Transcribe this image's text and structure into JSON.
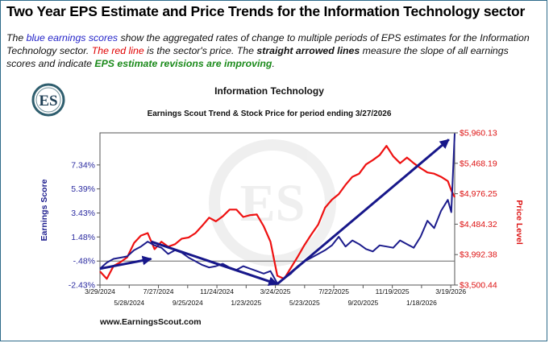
{
  "heading": "Two Year EPS Estimate and Price Trends for the Information Technology sector",
  "description": {
    "p1": "The ",
    "blue_phrase": "blue earnings scores",
    "p2": " show the aggregated rates of change to multiple periods of EPS estimates for the Information Technology sector. ",
    "red_phrase": "The red line",
    "p3": " is the sector's price. The ",
    "bold_phrase": "straight arrowed lines",
    "p4": " measure the slope of all earnings scores and indicate ",
    "green_phrase": "EPS estimate revisions are improving",
    "p5": "."
  },
  "logo_text": "ES",
  "colors": {
    "earnings": "#1c1c8c",
    "price": "#ee1111",
    "arrow": "#17178a",
    "left_axis": "#2a2aa0",
    "right_axis": "#dd1111"
  },
  "chart_data": {
    "type": "line",
    "title": "Information Technology",
    "subtitle": "Earnings Scout Trend & Stock Price for period ending 3/27/2026",
    "ylabel": "Earnings Score",
    "y2label": "Price Level",
    "footer": "www.EarningsScout.com",
    "ylim": [
      -2.43,
      9.95
    ],
    "y_ticks": [
      "-2.43%",
      "-.48%",
      "1.48%",
      "3.43%",
      "5.39%",
      "7.34%"
    ],
    "y_tick_values": [
      -2.43,
      -0.48,
      1.48,
      3.43,
      5.39,
      7.34
    ],
    "y2lim": [
      3500.44,
      5960.13
    ],
    "y2_ticks": [
      "$3,500.44",
      "$3,992.38",
      "$4,484.32",
      "$4,976.25",
      "$5,468.19",
      "$5,960.13"
    ],
    "y2_tick_values": [
      3500.44,
      3992.38,
      4484.32,
      4976.25,
      5468.19,
      5960.13
    ],
    "x_ticks_upper": [
      "3/29/2024",
      "7/27/2024",
      "11/24/2024",
      "3/24/2025",
      "7/22/2025",
      "11/19/2025",
      "3/19/2026"
    ],
    "x_ticks_lower": [
      "5/28/2024",
      "9/25/2024",
      "1/23/2025",
      "5/23/2025",
      "9/20/2025",
      "1/18/2026"
    ],
    "grid": "horizontal line at -.48%",
    "series": [
      {
        "name": "Earnings Score",
        "axis": "left",
        "x": [
          "2024-03-29",
          "2024-04-12",
          "2024-04-26",
          "2024-05-10",
          "2024-05-24",
          "2024-06-07",
          "2024-06-21",
          "2024-07-05",
          "2024-07-19",
          "2024-08-02",
          "2024-08-16",
          "2024-08-30",
          "2024-09-13",
          "2024-09-27",
          "2024-10-11",
          "2024-10-25",
          "2024-11-08",
          "2024-11-22",
          "2024-12-06",
          "2024-12-20",
          "2025-01-03",
          "2025-01-17",
          "2025-01-31",
          "2025-02-14",
          "2025-02-28",
          "2025-03-14",
          "2025-03-28",
          "2025-04-11",
          "2025-04-25",
          "2025-05-09",
          "2025-05-23",
          "2025-06-06",
          "2025-06-20",
          "2025-07-04",
          "2025-07-18",
          "2025-08-01",
          "2025-08-15",
          "2025-08-29",
          "2025-09-12",
          "2025-09-26",
          "2025-10-10",
          "2025-10-24",
          "2025-11-07",
          "2025-11-21",
          "2025-12-05",
          "2025-12-19",
          "2026-01-02",
          "2026-01-16",
          "2026-01-30",
          "2026-02-13",
          "2026-02-27",
          "2026-03-13",
          "2026-03-20",
          "2026-03-27"
        ],
        "values": [
          -1.1,
          -0.6,
          -0.3,
          -0.2,
          -0.1,
          0.4,
          0.7,
          1.1,
          0.8,
          0.6,
          0.1,
          0.4,
          0.2,
          -0.2,
          -0.5,
          -0.8,
          -1.0,
          -0.9,
          -0.7,
          -1.0,
          -1.2,
          -0.9,
          -1.1,
          -1.3,
          -1.5,
          -1.3,
          -2.3,
          -1.9,
          -1.5,
          -0.9,
          -0.5,
          -0.2,
          0.1,
          0.4,
          0.8,
          1.5,
          0.7,
          1.2,
          0.9,
          0.5,
          0.3,
          0.8,
          0.7,
          0.6,
          1.2,
          0.9,
          0.6,
          1.5,
          2.8,
          2.2,
          3.6,
          4.5,
          3.5,
          9.9
        ]
      },
      {
        "name": "Price",
        "axis": "right",
        "x": [
          "2024-03-29",
          "2024-04-12",
          "2024-04-26",
          "2024-05-10",
          "2024-05-24",
          "2024-06-07",
          "2024-06-21",
          "2024-07-05",
          "2024-07-19",
          "2024-08-02",
          "2024-08-16",
          "2024-08-30",
          "2024-09-13",
          "2024-09-27",
          "2024-10-11",
          "2024-10-25",
          "2024-11-08",
          "2024-11-22",
          "2024-12-06",
          "2024-12-20",
          "2025-01-03",
          "2025-01-17",
          "2025-01-31",
          "2025-02-14",
          "2025-02-28",
          "2025-03-14",
          "2025-03-28",
          "2025-04-11",
          "2025-04-25",
          "2025-05-09",
          "2025-05-23",
          "2025-06-06",
          "2025-06-20",
          "2025-07-04",
          "2025-07-18",
          "2025-08-01",
          "2025-08-15",
          "2025-08-29",
          "2025-09-12",
          "2025-09-26",
          "2025-10-10",
          "2025-10-24",
          "2025-11-07",
          "2025-11-21",
          "2025-12-05",
          "2025-12-19",
          "2026-01-02",
          "2026-01-16",
          "2026-01-30",
          "2026-02-13",
          "2026-02-27",
          "2026-03-13",
          "2026-03-20",
          "2026-03-27"
        ],
        "values": [
          3720,
          3600,
          3810,
          3870,
          3950,
          4180,
          4300,
          4340,
          4080,
          4200,
          4120,
          4160,
          4250,
          4270,
          4340,
          4460,
          4590,
          4530,
          4610,
          4720,
          4720,
          4600,
          4630,
          4640,
          4450,
          4200,
          3650,
          3600,
          3780,
          3960,
          4150,
          4320,
          4480,
          4750,
          4880,
          4970,
          5120,
          5250,
          5300,
          5450,
          5520,
          5600,
          5750,
          5580,
          5470,
          5560,
          5470,
          5390,
          5320,
          5300,
          5250,
          5180,
          5030,
          4920
        ]
      }
    ],
    "arrows": [
      {
        "from": [
          "2024-03-29",
          -1.1
        ],
        "to": [
          "2024-07-12",
          -0.3
        ]
      },
      {
        "from": [
          "2024-07-12",
          1.1
        ],
        "to": [
          "2025-03-28",
          -2.35
        ]
      },
      {
        "from": [
          "2025-03-28",
          -2.35
        ],
        "to": [
          "2026-03-15",
          9.4
        ]
      }
    ]
  }
}
